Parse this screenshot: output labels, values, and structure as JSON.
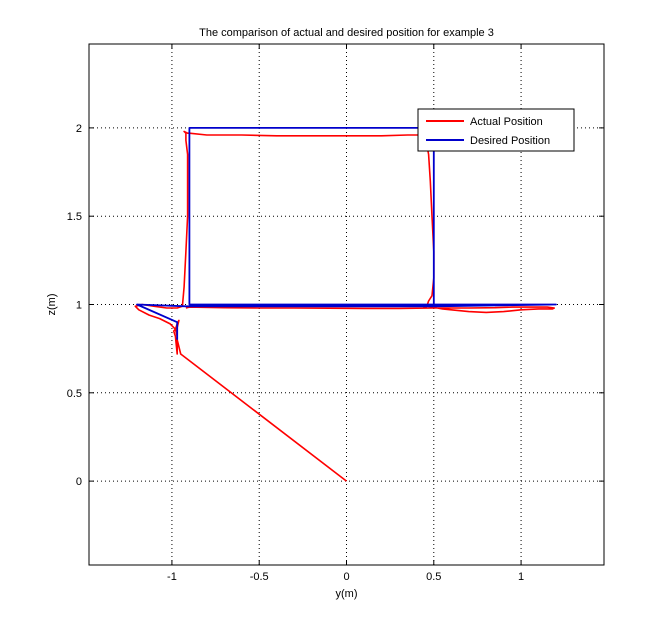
{
  "chart_data": {
    "type": "line",
    "title": "The comparison of actual and desired position for example 3",
    "xlabel": "y(m)",
    "ylabel": "z(m)",
    "xlim": [
      -1.475,
      1.475
    ],
    "ylim": [
      -0.475,
      2.475
    ],
    "xticks": [
      -1,
      -0.5,
      0,
      0.5,
      1
    ],
    "xtick_labels": [
      "-1",
      "-0.5",
      "0",
      "0.5",
      "1"
    ],
    "yticks": [
      0,
      0.5,
      1,
      1.5,
      2
    ],
    "ytick_labels": [
      "0",
      "0.5",
      "1",
      "1.5",
      "2"
    ],
    "grid": true,
    "grid_style": "dotted",
    "legend_position": "top-right",
    "series": [
      {
        "name": "Actual Position",
        "color": "#ff0000",
        "x": [
          0.0,
          -0.95,
          -0.97,
          -0.97,
          -0.96,
          -0.97,
          -0.98,
          -0.99,
          -0.98,
          -0.97,
          -0.97,
          -0.98,
          -1.01,
          -1.07,
          -1.13,
          -1.19,
          -1.21,
          -1.17,
          -1.1,
          -1.03,
          -0.97,
          -0.94,
          -0.93,
          -0.92,
          -0.91,
          -0.91,
          -0.91,
          -0.92,
          -0.92,
          -0.93,
          -0.91,
          -0.9,
          -0.8,
          -0.6,
          -0.4,
          -0.2,
          0.0,
          0.2,
          0.35,
          0.43,
          0.45,
          0.47,
          0.48,
          0.49,
          0.5,
          0.5,
          0.49,
          0.47,
          0.46,
          0.45,
          0.44,
          0.45,
          0.47,
          0.5,
          0.52,
          0.55,
          0.6,
          0.7,
          0.8,
          0.9,
          1.0,
          1.1,
          1.18,
          1.19,
          1.15,
          1.05,
          0.95,
          0.85,
          0.7,
          0.5,
          0.3,
          0.1,
          -0.1,
          -0.3,
          -0.5,
          -0.7,
          -0.9,
          -0.92
        ],
        "y": [
          0.0,
          0.72,
          0.8,
          0.87,
          0.91,
          0.89,
          0.86,
          0.85,
          0.82,
          0.72,
          0.82,
          0.86,
          0.89,
          0.92,
          0.94,
          0.97,
          0.99,
          1.0,
          0.99,
          0.98,
          0.98,
          0.99,
          1.1,
          1.3,
          1.5,
          1.7,
          1.85,
          1.93,
          1.97,
          1.98,
          1.97,
          1.97,
          1.96,
          1.96,
          1.955,
          1.955,
          1.955,
          1.955,
          1.96,
          1.96,
          1.95,
          1.85,
          1.7,
          1.5,
          1.3,
          1.15,
          1.05,
          1.02,
          0.99,
          0.98,
          0.99,
          0.995,
          0.99,
          0.985,
          0.98,
          0.975,
          0.97,
          0.96,
          0.955,
          0.96,
          0.97,
          0.975,
          0.975,
          0.98,
          0.985,
          0.985,
          0.985,
          0.982,
          0.98,
          0.98,
          0.978,
          0.978,
          0.979,
          0.98,
          0.98,
          0.982,
          0.985,
          0.98
        ]
      },
      {
        "name": "Desired Position",
        "color": "#0000cc",
        "x": [
          -0.97,
          -0.97,
          -1.2,
          -0.92,
          0.5,
          1.2,
          -0.9,
          -0.9,
          0.5,
          0.5
        ],
        "y": [
          0.8,
          0.9,
          1.0,
          0.99,
          0.99,
          1.0,
          1.0,
          2.0,
          2.0,
          1.0
        ]
      }
    ]
  }
}
